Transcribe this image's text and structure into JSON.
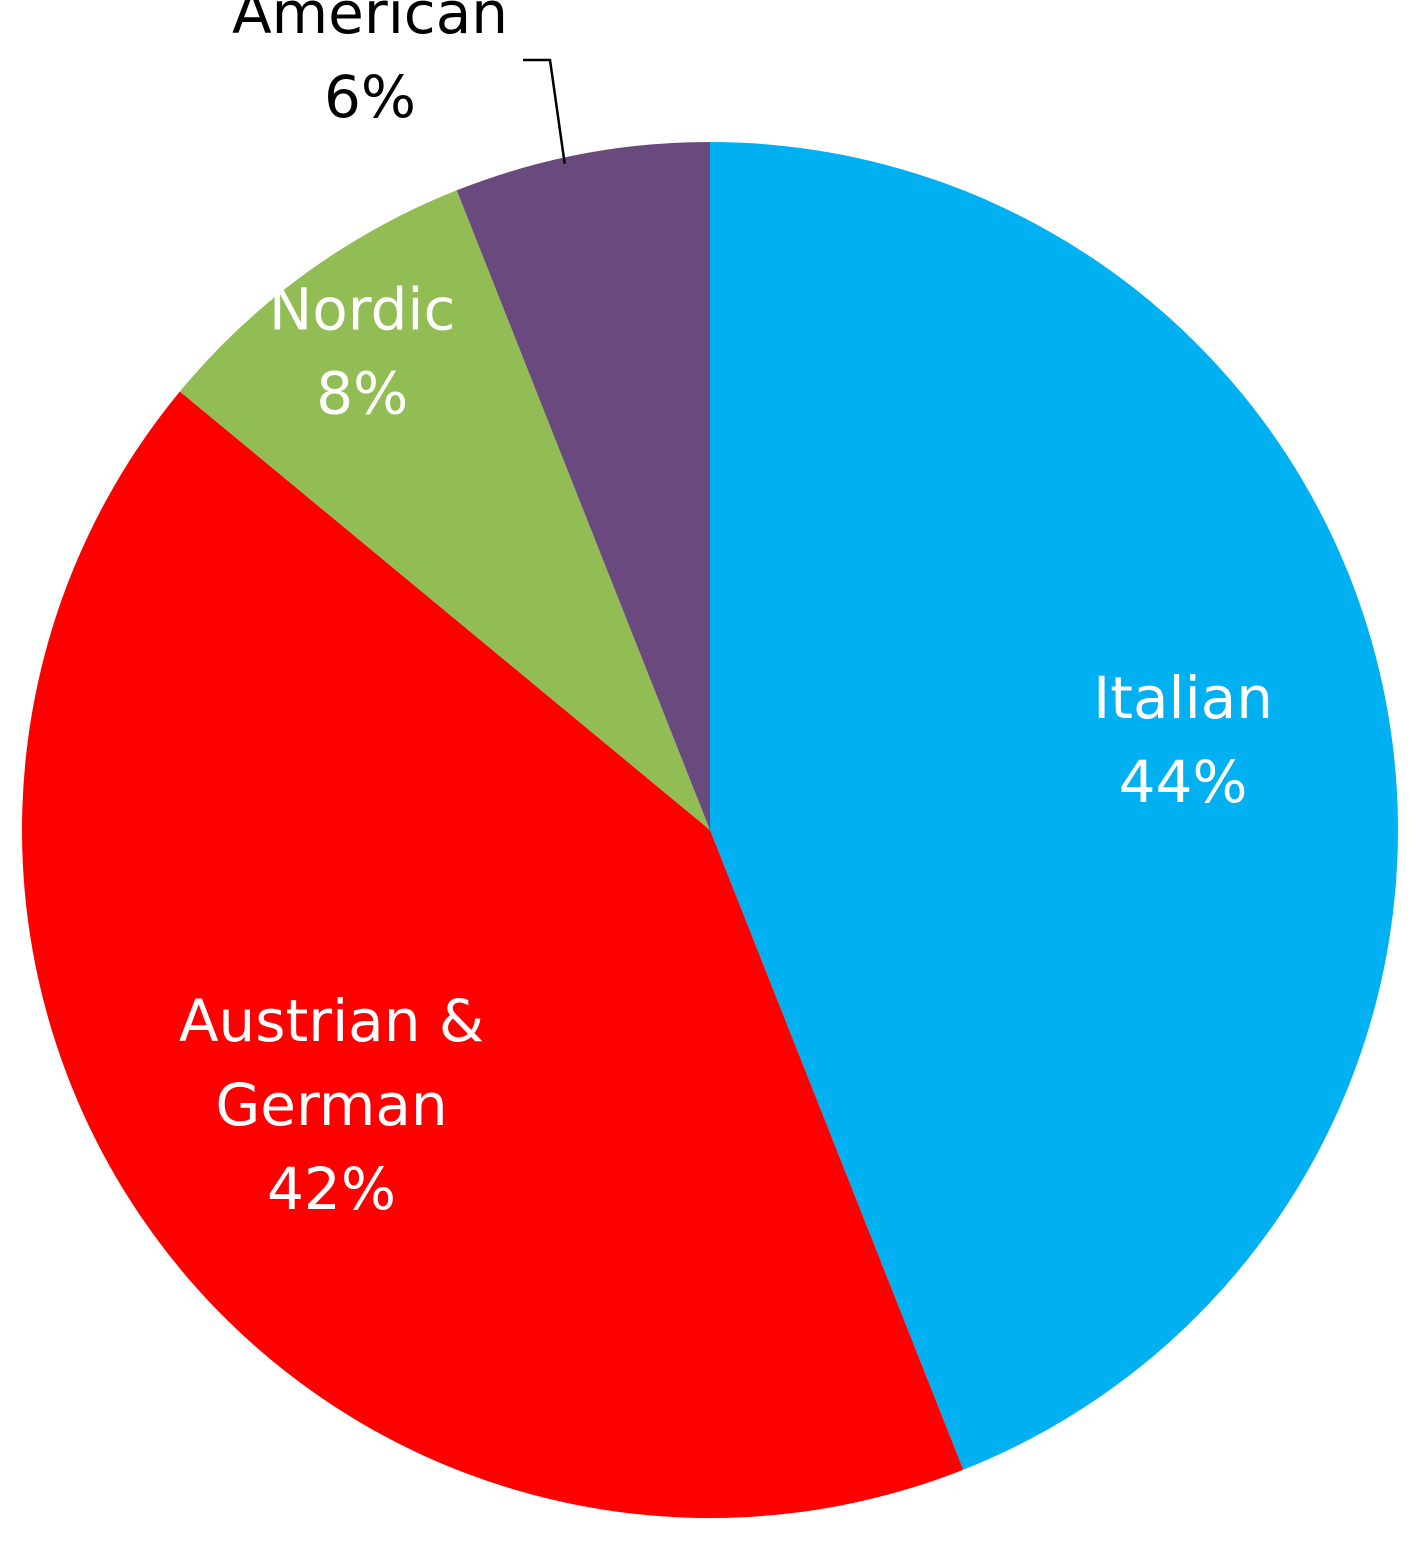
{
  "chart_data": {
    "type": "pie",
    "title": "",
    "start_angle_deg": 0,
    "direction": "clockwise",
    "legend": "none",
    "slices": [
      {
        "name": "Italian",
        "value": 44,
        "label_lines": [
          "Italian",
          "44%"
        ],
        "color": "#00B0F0",
        "label_position": "inside"
      },
      {
        "name": "Austrian & German",
        "value": 42,
        "label_lines": [
          "Austrian &",
          "German",
          "42%"
        ],
        "color": "#FF0000",
        "label_position": "inside"
      },
      {
        "name": "Nordic",
        "value": 8,
        "label_lines": [
          "Nordic",
          "8%"
        ],
        "color": "#92BD55",
        "label_position": "inside"
      },
      {
        "name": "American",
        "value": 6,
        "label_lines": [
          "American",
          "6%"
        ],
        "color": "#6A4A7E",
        "label_position": "outside"
      }
    ]
  }
}
